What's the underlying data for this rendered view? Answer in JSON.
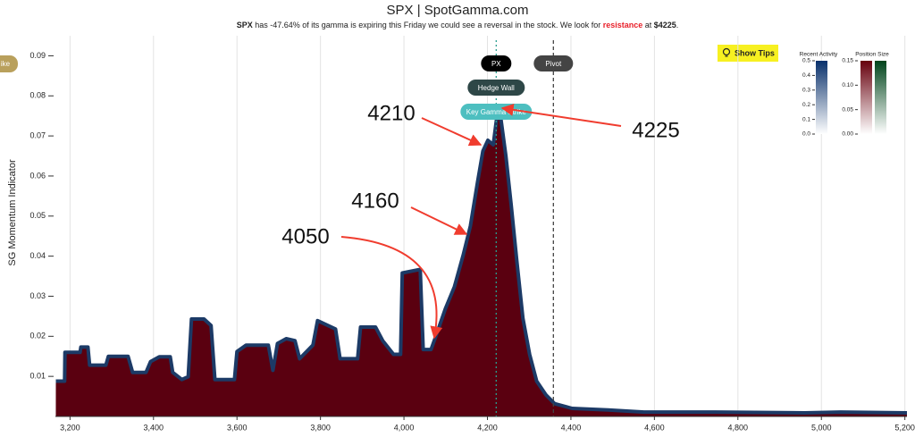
{
  "chart_data": {
    "type": "area",
    "title": "SPX | SpotGamma.com",
    "subtitle_parts": [
      "SPX",
      " has -47.64% of its gamma is expiring this Friday we could see a reversal in the stock. We look for ",
      "resistance",
      " at ",
      "$4225",
      "."
    ],
    "y_label": "SG Momentum Indicator",
    "xlim": [
      3165,
      5205
    ],
    "ylim": [
      0,
      0.095
    ],
    "xticks": [
      {
        "value": 3200,
        "label": "3,200"
      },
      {
        "value": 3400,
        "label": "3,400"
      },
      {
        "value": 3600,
        "label": "3,600"
      },
      {
        "value": 3800,
        "label": "3,800"
      },
      {
        "value": 4000,
        "label": "4,000"
      },
      {
        "value": 4200,
        "label": "4,200"
      },
      {
        "value": 4400,
        "label": "4,400"
      },
      {
        "value": 4600,
        "label": "4,600"
      },
      {
        "value": 4800,
        "label": "4,800"
      },
      {
        "value": 5000,
        "label": "5,000"
      },
      {
        "value": 5200,
        "label": "5,200"
      }
    ],
    "yticks": [
      0.01,
      0.02,
      0.03,
      0.04,
      0.05,
      0.06,
      0.07,
      0.08,
      0.09
    ],
    "grid": true,
    "x": [
      3166,
      3187,
      3188,
      3224,
      3226,
      3243,
      3247,
      3286,
      3292,
      3339,
      3350,
      3382,
      3393,
      3414,
      3440,
      3446,
      3468,
      3483,
      3491,
      3521,
      3538,
      3547,
      3594,
      3600,
      3622,
      3675,
      3686,
      3697,
      3718,
      3739,
      3750,
      3782,
      3793,
      3836,
      3847,
      3889,
      3896,
      3932,
      3949,
      3975,
      3992,
      3996,
      4039,
      4046,
      4065,
      4078,
      4099,
      4121,
      4142,
      4159,
      4176,
      4189,
      4201,
      4214,
      4223,
      4231,
      4244,
      4257,
      4270,
      4285,
      4301,
      4318,
      4340,
      4361,
      4403,
      4489,
      4575,
      4746,
      4960,
      5046,
      5205
    ],
    "series": [
      {
        "name": "SG Momentum Indicator",
        "color": "#5a0010",
        "line_color": "#1c3a66",
        "values": [
          0.0088,
          0.0088,
          0.016,
          0.016,
          0.0173,
          0.0173,
          0.0128,
          0.0128,
          0.015,
          0.015,
          0.011,
          0.011,
          0.0137,
          0.0149,
          0.0149,
          0.011,
          0.0092,
          0.0099,
          0.0243,
          0.0243,
          0.0227,
          0.0092,
          0.0092,
          0.0162,
          0.0178,
          0.0178,
          0.0115,
          0.0182,
          0.0194,
          0.0189,
          0.0144,
          0.0178,
          0.0239,
          0.0218,
          0.0144,
          0.0144,
          0.0223,
          0.0223,
          0.0189,
          0.0155,
          0.0155,
          0.0358,
          0.0367,
          0.0167,
          0.0167,
          0.0205,
          0.0268,
          0.0324,
          0.0403,
          0.0475,
          0.0583,
          0.0662,
          0.0689,
          0.0678,
          0.0752,
          0.0752,
          0.0651,
          0.0527,
          0.0392,
          0.0245,
          0.0155,
          0.0088,
          0.0054,
          0.0032,
          0.002,
          0.0016,
          0.0011,
          0.0011,
          0.0009,
          0.0011,
          0.0009
        ]
      }
    ],
    "markers": [
      {
        "label": "PX",
        "x": 4221,
        "color": "#2a9d8f"
      },
      {
        "label": "Pivot",
        "x": 4358,
        "color": "#444444"
      }
    ],
    "levels": [
      "Hedge Wall",
      "Key Gamma Strike"
    ],
    "annotations": [
      "4210",
      "4160",
      "4050",
      "4225"
    ],
    "button": "Show Tips",
    "side_button": "ike",
    "colorbars": [
      {
        "title": "Recent Activity",
        "colors": [
          "#08306b",
          "#ffffff"
        ],
        "ticks": [
          0.5,
          0.4,
          0.3,
          0.2,
          0.1,
          {
            "value": 0,
            "label": "0.0"
          }
        ],
        "lim": [
          0,
          0.5
        ]
      },
      {
        "title": "Position Size",
        "colors": [
          "#67000d",
          "#ffffff"
        ],
        "colors2": [
          "#00441b",
          "#ffffff"
        ],
        "ticks": [
          0.15,
          {
            "value": 0.1,
            "label": "0.10"
          },
          0.05,
          {
            "value": 0,
            "label": "0.00"
          }
        ],
        "lim": [
          0,
          0.15
        ]
      }
    ]
  }
}
